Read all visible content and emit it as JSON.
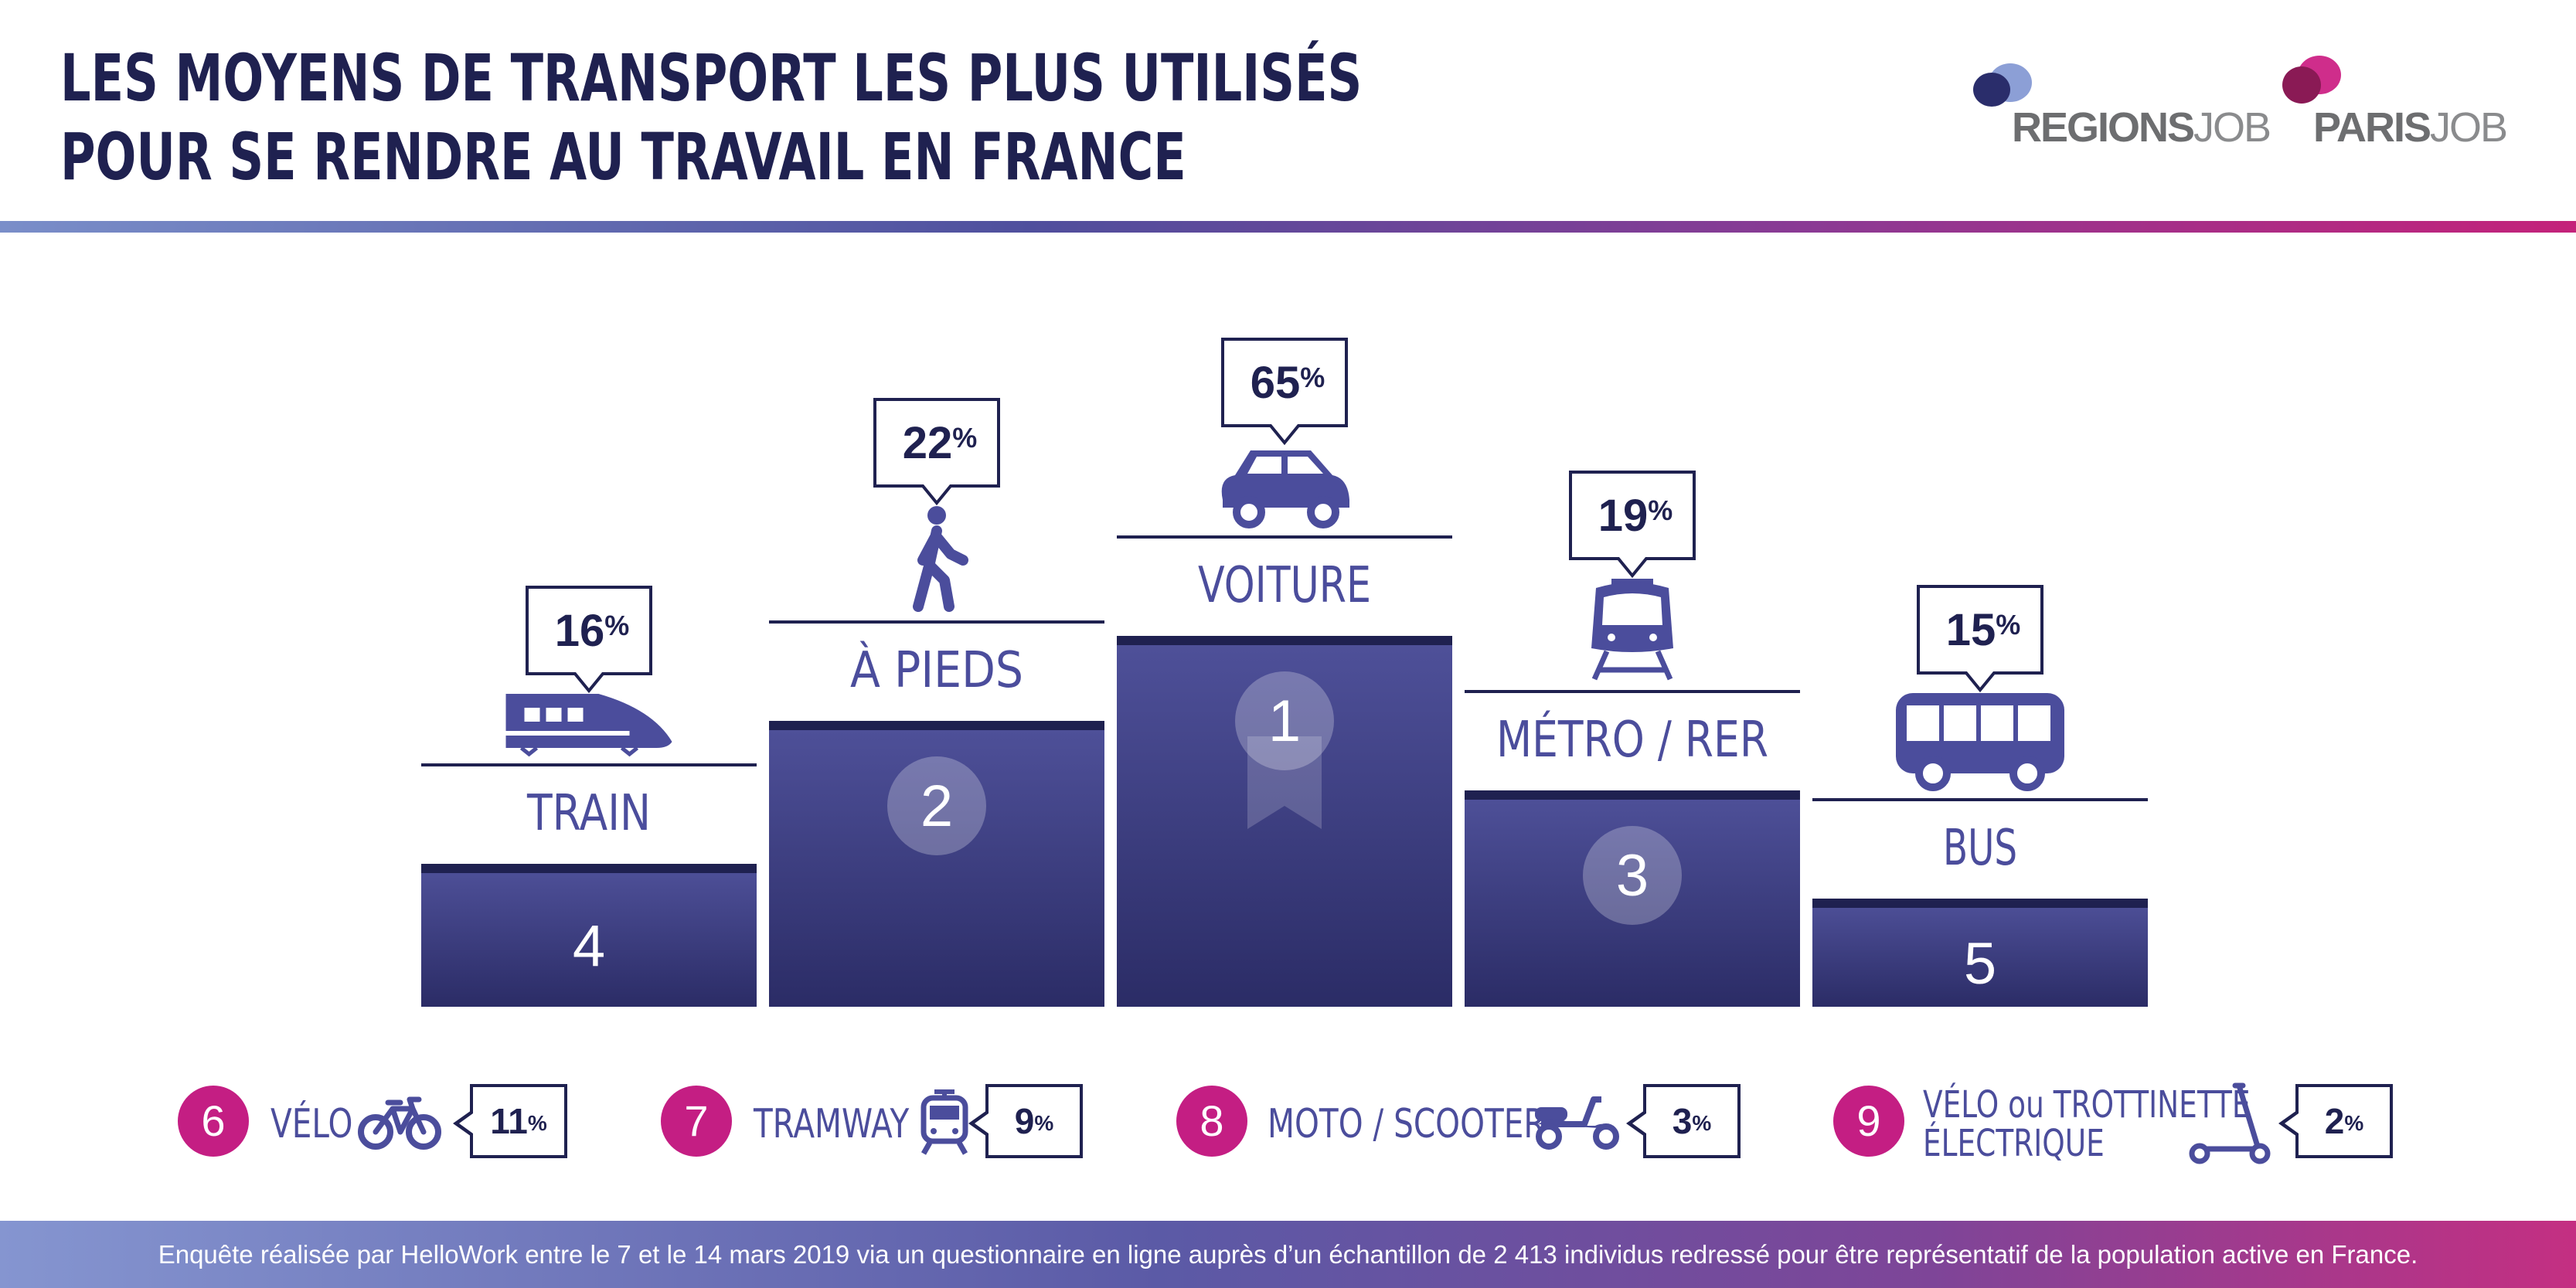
{
  "header": {
    "title_line1": "LES MOYENS DE TRANSPORT LES PLUS UTILISÉS",
    "title_line2": "POUR SE RENDRE AU TRAVAIL EN FRANCE",
    "logo_regions": "REGIONS",
    "logo_regions_job": "JOB",
    "logo_paris": "PARIS",
    "logo_paris_job": "JOB"
  },
  "chart_data": {
    "type": "bar",
    "title": "LES MOYENS DE TRANSPORT LES PLUS UTILISÉS POUR SE RENDRE AU TRAVAIL EN FRANCE",
    "unit": "%",
    "podium": [
      {
        "rank": 4,
        "label": "TRAIN",
        "value": 16,
        "icon": "train-icon"
      },
      {
        "rank": 2,
        "label": "À PIEDS",
        "value": 22,
        "icon": "walking-person-icon"
      },
      {
        "rank": 1,
        "label": "VOITURE",
        "value": 65,
        "icon": "car-icon"
      },
      {
        "rank": 3,
        "label": "MÉTRO / RER",
        "value": 19,
        "icon": "metro-icon"
      },
      {
        "rank": 5,
        "label": "BUS",
        "value": 15,
        "icon": "bus-icon"
      }
    ],
    "others": [
      {
        "rank": 6,
        "label": "VÉLO",
        "value": 11,
        "icon": "bicycle-icon"
      },
      {
        "rank": 7,
        "label": "TRAMWAY",
        "value": 9,
        "icon": "tram-icon"
      },
      {
        "rank": 8,
        "label": "MOTO / SCOOTER",
        "value": 3,
        "icon": "scooter-icon"
      },
      {
        "rank": 9,
        "label_line1": "VÉLO ou TROTTINETTE",
        "label_line2": "ÉLECTRIQUE",
        "value": 2,
        "icon": "kick-scooter-icon"
      }
    ]
  },
  "footer": {
    "note": "Enquête réalisée par HelloWork entre le 7 et le 14 mars 2019 via un questionnaire en ligne auprès d’un échantillon de 2 413 individus redressé pour être représentatif de la population active en France."
  },
  "colors": {
    "navy": "#1f2150",
    "indigo": "#4b4d9c",
    "magenta": "#c41e83",
    "bar_top": "#4f519a",
    "bar_bottom": "#2b2c66"
  }
}
